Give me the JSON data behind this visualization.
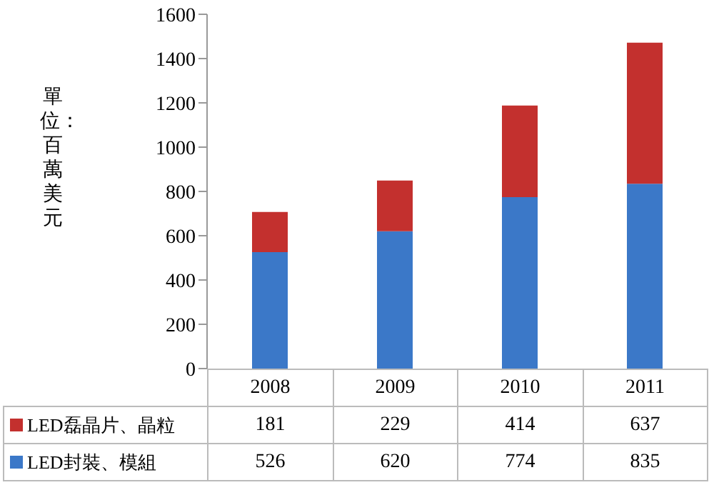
{
  "chart_data": {
    "type": "bar",
    "stacked": true,
    "ylabel": "單位：百萬美元",
    "categories": [
      "2008",
      "2009",
      "2010",
      "2011"
    ],
    "series": [
      {
        "name": "LED封裝、模組",
        "color": "#3b78c8",
        "values": [
          526,
          620,
          774,
          835
        ]
      },
      {
        "name": "LED磊晶片、晶粒",
        "color": "#c3302e",
        "values": [
          181,
          229,
          414,
          637
        ]
      }
    ],
    "ylim": [
      0,
      1600
    ],
    "yticks": [
      0,
      200,
      400,
      600,
      800,
      1000,
      1200,
      1400,
      1600
    ],
    "grid": false,
    "legend": "bottom",
    "data_labels": true
  }
}
